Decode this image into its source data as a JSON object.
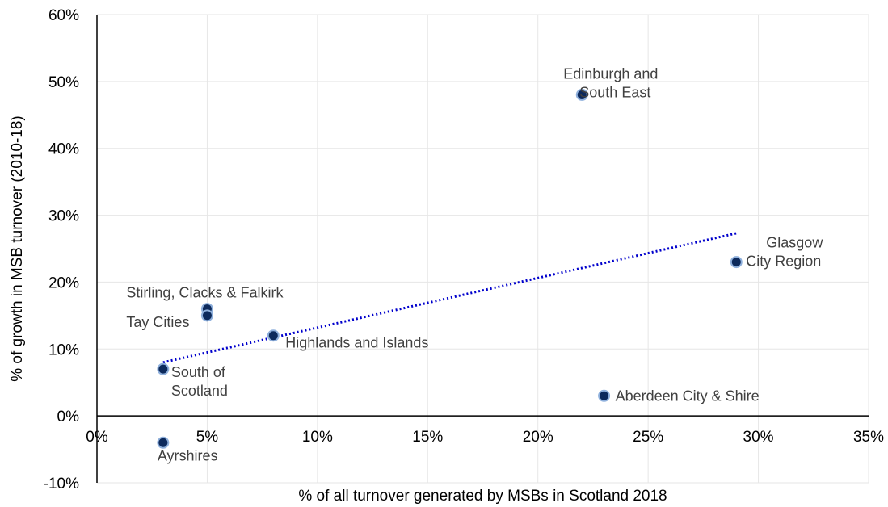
{
  "chart_data": {
    "type": "scatter",
    "title": "",
    "xlabel": "% of all turnover generated by MSBs in Scotland 2018",
    "ylabel": "% of growth in MSB turnover (2010-18)",
    "xlim": [
      0,
      35
    ],
    "ylim": [
      -10,
      60
    ],
    "x_ticks": [
      0,
      5,
      10,
      15,
      20,
      25,
      30,
      35
    ],
    "y_ticks": [
      -10,
      0,
      10,
      20,
      30,
      40,
      50,
      60
    ],
    "x_tick_labels": [
      "0%",
      "5%",
      "10%",
      "15%",
      "20%",
      "25%",
      "30%",
      "35%"
    ],
    "y_tick_labels": [
      "-10%",
      "0%",
      "10%",
      "20%",
      "30%",
      "40%",
      "50%",
      "60%"
    ],
    "grid": true,
    "legend": "none",
    "marker_color": "#0d2a5c",
    "marker_edge_color": "#8fb0dc",
    "trendline": {
      "type": "linear",
      "style": "dotted",
      "color": "#0000cc",
      "x": [
        3,
        29
      ],
      "y": [
        8,
        27.3
      ]
    },
    "points": [
      {
        "x": 22,
        "y": 48,
        "label": [
          "Edinburgh and",
          "South East"
        ]
      },
      {
        "x": 29,
        "y": 23,
        "label": [
          "Glasgow",
          "City Region"
        ]
      },
      {
        "x": 5,
        "y": 16,
        "label": [
          "Stirling, Clacks & Falkirk"
        ]
      },
      {
        "x": 5,
        "y": 15,
        "label": [
          "Tay Cities"
        ]
      },
      {
        "x": 8,
        "y": 12,
        "label": [
          "Highlands and Islands"
        ]
      },
      {
        "x": 3,
        "y": 7,
        "label": [
          "South of",
          "Scotland"
        ]
      },
      {
        "x": 23,
        "y": 3,
        "label": [
          "Aberdeen City & Shire"
        ]
      },
      {
        "x": 3,
        "y": -4,
        "label": [
          "Ayrshires"
        ]
      }
    ]
  }
}
